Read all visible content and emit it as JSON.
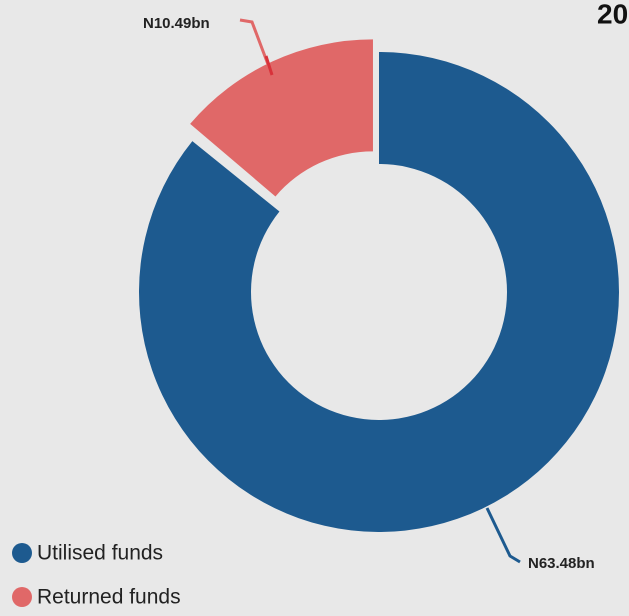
{
  "chart_data": {
    "type": "donut",
    "title": "20",
    "categories": [
      "Utilised funds",
      "Returned funds"
    ],
    "values": [
      63.48,
      10.49
    ],
    "value_labels": [
      "N63.48bn",
      "N10.49bn"
    ],
    "colors": [
      "#1d5a8f",
      "#e06868"
    ],
    "legend": "bottom-left"
  }
}
